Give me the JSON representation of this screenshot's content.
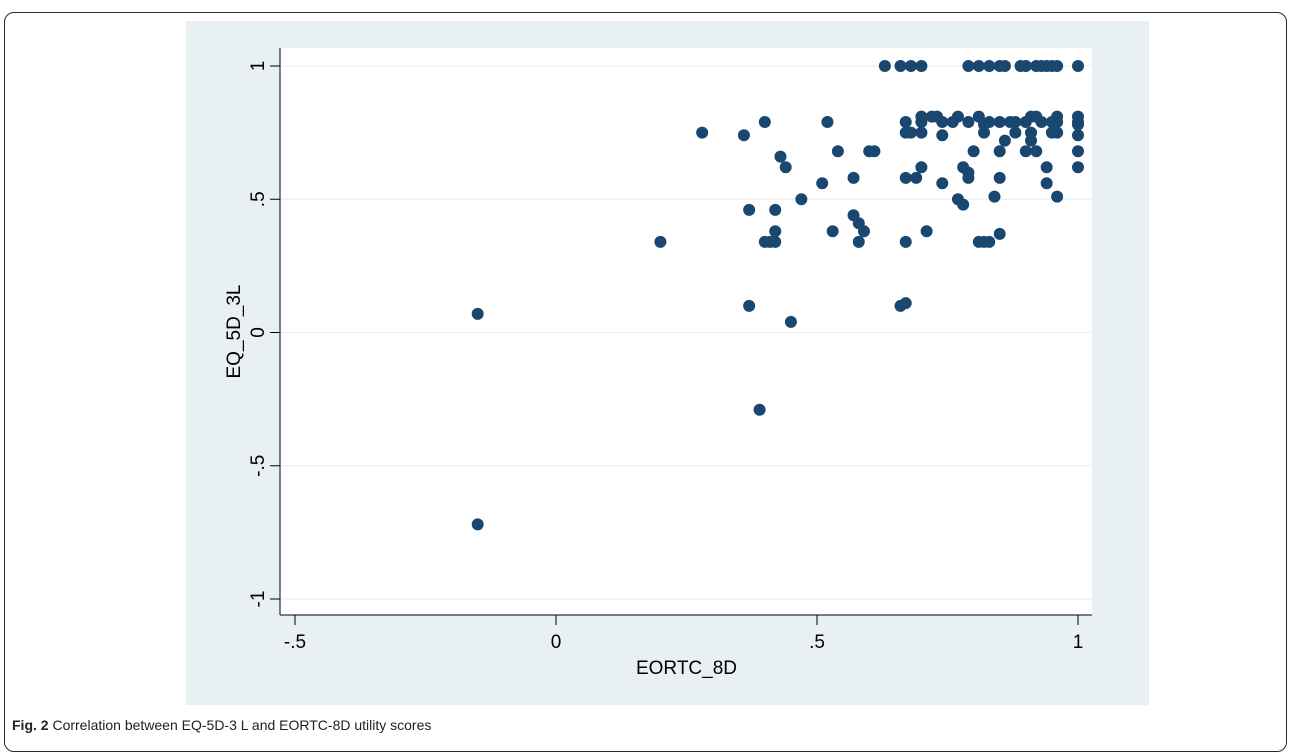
{
  "caption": {
    "label": "Fig. 2",
    "text": "Correlation between EQ-5D-3 L and EORTC-8D utility scores"
  },
  "colors": {
    "marker": "#1a476f",
    "plot_background": "#ffffff",
    "outer_background": "#e9f0f3",
    "gridline": "#e9f0f3"
  },
  "chart_data": {
    "type": "scatter",
    "title": "",
    "xlabel": "EORTC_8D",
    "ylabel": "EQ_5D_3L",
    "xlim": [
      -0.5,
      1
    ],
    "ylim": [
      -1,
      1
    ],
    "xticks": [
      -0.5,
      0,
      0.5,
      1
    ],
    "xtick_labels": [
      "-.5",
      "0",
      ".5",
      "1"
    ],
    "yticks": [
      -1,
      -0.5,
      0,
      0.5,
      1
    ],
    "ytick_labels": [
      "-1",
      "-.5",
      "0",
      ".5",
      "1"
    ],
    "grid": "horizontal",
    "points": [
      [
        -0.15,
        0.07
      ],
      [
        -0.15,
        -0.72
      ],
      [
        0.2,
        0.34
      ],
      [
        0.28,
        0.75
      ],
      [
        0.36,
        0.74
      ],
      [
        0.37,
        0.46
      ],
      [
        0.37,
        0.1
      ],
      [
        0.39,
        -0.29
      ],
      [
        0.4,
        0.79
      ],
      [
        0.4,
        0.34
      ],
      [
        0.41,
        0.34
      ],
      [
        0.42,
        0.34
      ],
      [
        0.42,
        0.38
      ],
      [
        0.42,
        0.46
      ],
      [
        0.43,
        0.66
      ],
      [
        0.44,
        0.62
      ],
      [
        0.45,
        0.04
      ],
      [
        0.47,
        0.5
      ],
      [
        0.51,
        0.56
      ],
      [
        0.52,
        0.79
      ],
      [
        0.53,
        0.38
      ],
      [
        0.54,
        0.68
      ],
      [
        0.57,
        0.58
      ],
      [
        0.57,
        0.44
      ],
      [
        0.58,
        0.41
      ],
      [
        0.58,
        0.34
      ],
      [
        0.59,
        0.38
      ],
      [
        0.6,
        0.68
      ],
      [
        0.61,
        0.68
      ],
      [
        0.63,
        1.0
      ],
      [
        0.66,
        1.0
      ],
      [
        0.66,
        0.1
      ],
      [
        0.67,
        0.11
      ],
      [
        0.67,
        0.79
      ],
      [
        0.67,
        0.75
      ],
      [
        0.67,
        0.58
      ],
      [
        0.67,
        0.34
      ],
      [
        0.68,
        1.0
      ],
      [
        0.68,
        0.75
      ],
      [
        0.69,
        0.58
      ],
      [
        0.7,
        1.0
      ],
      [
        0.7,
        0.81
      ],
      [
        0.7,
        0.79
      ],
      [
        0.7,
        0.75
      ],
      [
        0.7,
        0.62
      ],
      [
        0.71,
        0.38
      ],
      [
        0.72,
        0.81
      ],
      [
        0.73,
        0.81
      ],
      [
        0.74,
        0.79
      ],
      [
        0.74,
        0.74
      ],
      [
        0.74,
        0.56
      ],
      [
        0.76,
        0.79
      ],
      [
        0.77,
        0.81
      ],
      [
        0.77,
        0.5
      ],
      [
        0.78,
        0.62
      ],
      [
        0.78,
        0.48
      ],
      [
        0.79,
        1.0
      ],
      [
        0.79,
        0.79
      ],
      [
        0.79,
        0.6
      ],
      [
        0.79,
        0.58
      ],
      [
        0.8,
        0.68
      ],
      [
        0.81,
        1.0
      ],
      [
        0.81,
        0.81
      ],
      [
        0.81,
        0.34
      ],
      [
        0.82,
        0.34
      ],
      [
        0.82,
        0.75
      ],
      [
        0.82,
        0.78
      ],
      [
        0.83,
        1.0
      ],
      [
        0.83,
        0.34
      ],
      [
        0.83,
        0.79
      ],
      [
        0.84,
        0.51
      ],
      [
        0.85,
        1.0
      ],
      [
        0.85,
        0.79
      ],
      [
        0.85,
        0.68
      ],
      [
        0.85,
        0.58
      ],
      [
        0.85,
        0.37
      ],
      [
        0.86,
        1.0
      ],
      [
        0.86,
        0.72
      ],
      [
        0.87,
        0.79
      ],
      [
        0.88,
        0.75
      ],
      [
        0.88,
        0.79
      ],
      [
        0.89,
        1.0
      ],
      [
        0.9,
        1.0
      ],
      [
        0.9,
        0.79
      ],
      [
        0.9,
        0.68
      ],
      [
        0.91,
        0.81
      ],
      [
        0.91,
        0.75
      ],
      [
        0.91,
        0.72
      ],
      [
        0.92,
        1.0
      ],
      [
        0.92,
        0.81
      ],
      [
        0.92,
        0.68
      ],
      [
        0.93,
        1.0
      ],
      [
        0.93,
        0.79
      ],
      [
        0.94,
        1.0
      ],
      [
        0.94,
        0.62
      ],
      [
        0.94,
        0.56
      ],
      [
        0.95,
        1.0
      ],
      [
        0.95,
        0.79
      ],
      [
        0.95,
        0.75
      ],
      [
        0.96,
        1.0
      ],
      [
        0.96,
        0.81
      ],
      [
        0.96,
        0.79
      ],
      [
        0.96,
        0.75
      ],
      [
        0.96,
        0.51
      ],
      [
        1.0,
        1.0
      ],
      [
        1.0,
        0.81
      ],
      [
        1.0,
        0.79
      ],
      [
        1.0,
        0.78
      ],
      [
        1.0,
        0.74
      ],
      [
        1.0,
        0.68
      ],
      [
        1.0,
        0.62
      ]
    ]
  }
}
